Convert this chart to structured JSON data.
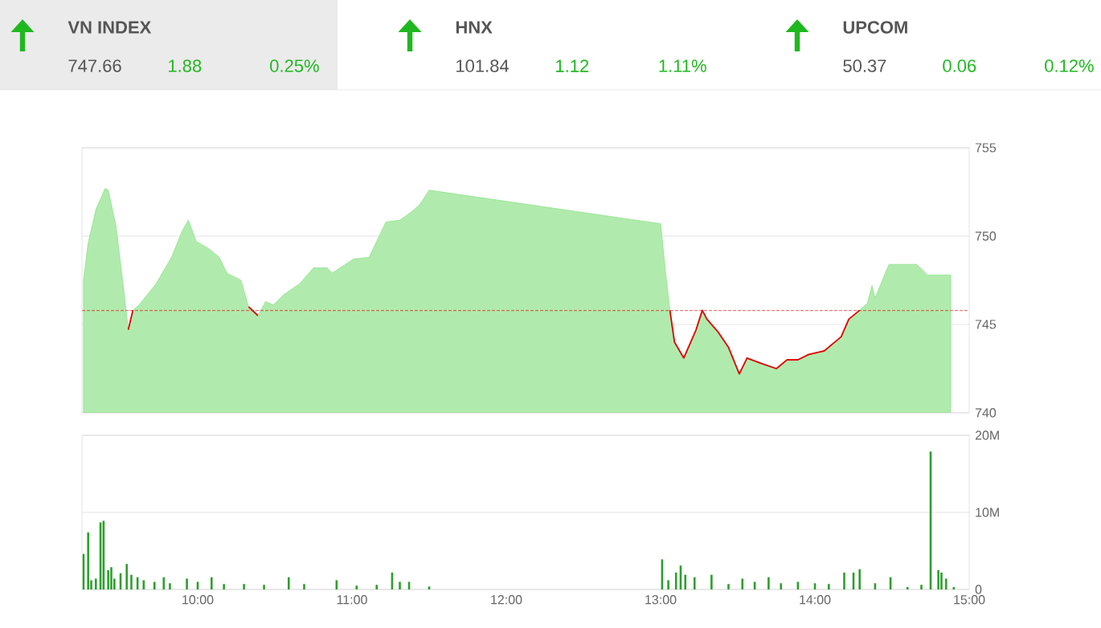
{
  "chart_data": [
    {
      "type": "other",
      "categories": [
        "VN INDEX",
        "HNX",
        "UPCOM"
      ],
      "annotations": [
        "747.66",
        "1.88",
        "0.25%",
        "101.84",
        "1.12",
        "1.11%",
        "50.37",
        "0.06",
        "0.12%"
      ]
    },
    {
      "type": "area",
      "x": [
        9.26,
        9.29,
        9.34,
        9.4,
        9.42,
        9.47,
        9.52,
        9.55,
        9.58,
        9.62,
        9.73,
        9.83,
        9.9,
        9.94,
        9.99,
        10.07,
        10.14,
        10.19,
        10.28,
        10.33,
        10.39,
        10.44,
        10.49,
        10.56,
        10.66,
        10.75,
        10.84,
        10.87,
        11.01,
        11.11,
        11.22,
        11.31,
        11.39,
        11.44,
        11.5,
        13.0,
        13.03,
        13.06,
        13.09,
        13.15,
        13.18,
        13.23,
        13.27,
        13.3,
        13.37,
        13.44,
        13.51,
        13.56,
        13.65,
        13.75,
        13.82,
        13.89,
        13.96,
        14.06,
        14.17,
        14.22,
        14.29,
        14.34,
        14.37,
        14.39,
        14.48,
        14.66,
        14.73,
        14.88
      ],
      "series": [
        {
          "color": "#8ee28a",
          "values": [
            747.5,
            749.6,
            751.5,
            752.7,
            752.6,
            750.6,
            747,
            744.7,
            745.8,
            746.1,
            747.3,
            748.8,
            750.3,
            750.9,
            749.7,
            749.3,
            748.8,
            747.9,
            747.5,
            746,
            745.5,
            746.3,
            746.1,
            746.7,
            747.3,
            748.2,
            748.2,
            747.9,
            748.7,
            748.8,
            750.8,
            750.9,
            751.4,
            751.8,
            752.6,
            750.7,
            748.1,
            745.8,
            744,
            743.1,
            743.7,
            744.7,
            745.8,
            745.3,
            744.6,
            743.7,
            742.2,
            743.1,
            742.8,
            742.5,
            743,
            743,
            743.3,
            743.5,
            744.3,
            745.3,
            745.8,
            746.2,
            747.2,
            746.5,
            748.4,
            748.4,
            747.8,
            747.8
          ]
        },
        {
          "type": "line",
          "color": "#e00000",
          "values": [
            null,
            null,
            null,
            null,
            null,
            null,
            null,
            744.7,
            745.8,
            null,
            null,
            null,
            null,
            null,
            null,
            null,
            null,
            null,
            null,
            746,
            745.5,
            null,
            null,
            null,
            null,
            null,
            null,
            null,
            null,
            null,
            null,
            null,
            null,
            null,
            null,
            null,
            null,
            745.8,
            744,
            743.1,
            743.7,
            744.7,
            745.8,
            745.3,
            744.6,
            743.7,
            742.2,
            743.1,
            742.8,
            742.5,
            743,
            743,
            743.3,
            743.5,
            744.3,
            745.3,
            745.8,
            null,
            null,
            null,
            null,
            null,
            null,
            null
          ]
        }
      ],
      "xlim": [
        9.25,
        15
      ],
      "ylim": [
        740,
        755
      ],
      "yticks": [
        740,
        745,
        750,
        755
      ],
      "tick_labels": "y",
      "grid": "y",
      "ref_lines": [
        {
          "axis": "y",
          "value": 745.78,
          "color": "#e00000",
          "line_style": "dashed"
        }
      ]
    },
    {
      "type": "bar",
      "x": [
        9.26,
        9.29,
        9.31,
        9.34,
        9.37,
        9.39,
        9.42,
        9.44,
        9.46,
        9.5,
        9.54,
        9.57,
        9.61,
        9.65,
        9.72,
        9.78,
        9.82,
        9.93,
        10.0,
        10.09,
        10.17,
        10.3,
        10.43,
        10.59,
        10.69,
        10.9,
        11.03,
        11.16,
        11.26,
        11.31,
        11.37,
        11.5,
        13.01,
        13.05,
        13.1,
        13.13,
        13.16,
        13.22,
        13.33,
        13.44,
        13.53,
        13.61,
        13.7,
        13.78,
        13.89,
        14.0,
        14.09,
        14.19,
        14.25,
        14.29,
        14.39,
        14.49,
        14.6,
        14.69,
        14.75,
        14.8,
        14.82,
        14.85,
        14.9
      ],
      "values": [
        4.6,
        7.4,
        1.2,
        1.4,
        8.7,
        8.9,
        2.5,
        2.9,
        1.4,
        2.1,
        3.3,
        1.9,
        1.6,
        1.2,
        1.0,
        1.6,
        0.8,
        1.4,
        1.0,
        1.6,
        0.7,
        0.7,
        0.6,
        1.6,
        0.7,
        1.2,
        0.5,
        0.6,
        2.2,
        1.0,
        1.0,
        0.4,
        3.9,
        1.2,
        2.2,
        3.1,
        1.9,
        1.6,
        1.9,
        0.7,
        1.4,
        1.0,
        1.6,
        0.8,
        1.0,
        0.8,
        0.7,
        2.2,
        2.2,
        2.6,
        0.8,
        1.6,
        0.3,
        0.6,
        17.9,
        2.5,
        2.2,
        1.4,
        0.3
      ],
      "color": "#2e9e2e",
      "xlim": [
        9.25,
        15
      ],
      "xticks": [
        {
          "value": 10,
          "label": "10:00"
        },
        {
          "value": 11,
          "label": "11:00"
        },
        {
          "value": 12,
          "label": "12:00"
        },
        {
          "value": 13,
          "label": "13:00"
        },
        {
          "value": 14,
          "label": "14:00"
        },
        {
          "value": 15,
          "label": "15:00"
        }
      ],
      "ylim": [
        0,
        20
      ],
      "yticks": [
        {
          "value": 0,
          "label": "0"
        },
        {
          "value": 10,
          "label": "10M"
        },
        {
          "value": 20,
          "label": "20M"
        }
      ],
      "grid": "y"
    }
  ]
}
